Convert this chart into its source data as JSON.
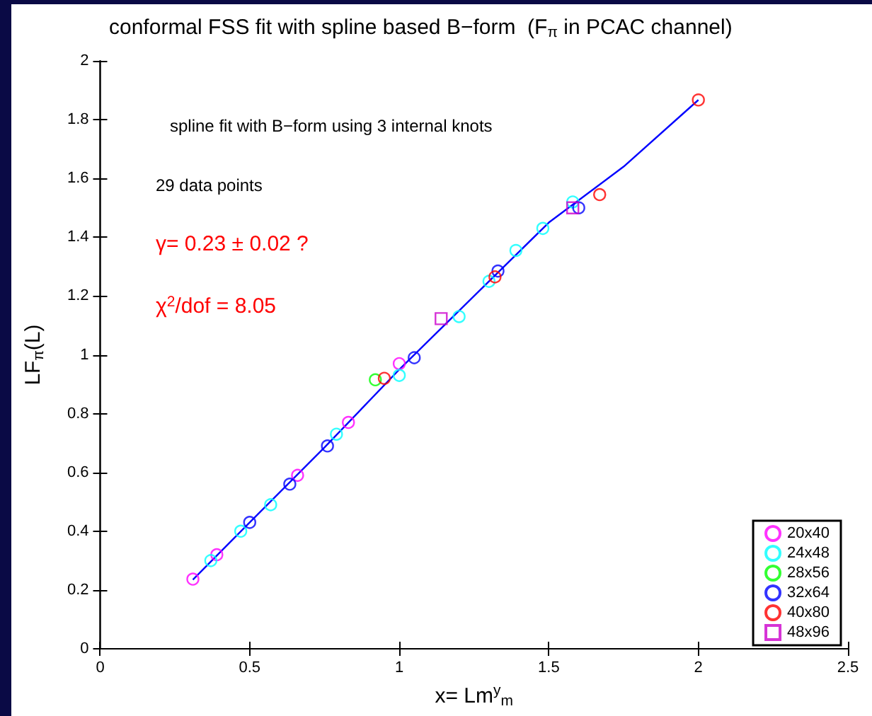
{
  "chart_data": {
    "type": "scatter",
    "title": "conformal FSS fit with spline based B−form  (F$_{π}$ in PCAC channel)",
    "xlabel": "x= Lm$^{y}$$_{m}$",
    "ylabel": "LF$_{π}$(L)",
    "annotations": [
      "spline fit with B−form using 3 internal knots",
      "29 data points",
      "γ= 0.23 ± 0.02 ?",
      "χ$^{2}$/dof = 8.05"
    ],
    "series": [
      {
        "name": "20x40",
        "color": "#ff00ff",
        "marker": "circle",
        "x": [
          0.31,
          0.39,
          0.66,
          0.83,
          1.0
        ],
        "values": [
          0.237,
          0.32,
          0.59,
          0.77,
          0.97
        ]
      },
      {
        "name": "24x48",
        "color": "#00ffff",
        "marker": "circle",
        "x": [
          0.37,
          0.47,
          0.57,
          0.79,
          1.0,
          1.2,
          1.3,
          1.39,
          1.48,
          1.58
        ],
        "values": [
          0.3,
          0.4,
          0.49,
          0.73,
          0.93,
          1.13,
          1.25,
          1.355,
          1.43,
          1.52
        ]
      },
      {
        "name": "28x56",
        "color": "#00ff00",
        "marker": "circle",
        "x": [
          0.92
        ],
        "values": [
          0.915
        ]
      },
      {
        "name": "32x64",
        "color": "#0000ff",
        "marker": "circle",
        "x": [
          0.5,
          0.634,
          0.76,
          1.05,
          1.33,
          1.6
        ],
        "values": [
          0.43,
          0.56,
          0.69,
          0.99,
          1.285,
          1.5
        ]
      },
      {
        "name": "40x80",
        "color": "#ff0000",
        "marker": "circle",
        "x": [
          0.95,
          1.32,
          1.67,
          2.0
        ],
        "values": [
          0.92,
          1.265,
          1.545,
          1.867
        ]
      },
      {
        "name": "48x96",
        "color": "#cc00cc",
        "marker": "square",
        "x": [
          1.14,
          1.58
        ],
        "values": [
          1.123,
          1.5
        ]
      },
      {
        "type": "line",
        "color": "#0000ff",
        "marker": "none",
        "x": [
          0.31,
          0.5,
          0.75,
          1.0,
          1.25,
          1.5,
          1.75,
          2.0
        ],
        "values": [
          0.235,
          0.43,
          0.685,
          0.95,
          1.2,
          1.45,
          1.64,
          1.867
        ]
      }
    ],
    "xlim": [
      0,
      2.5
    ],
    "xticks": [
      0,
      0.5,
      1,
      1.5,
      2,
      2.5
    ],
    "ylim": [
      0,
      2
    ],
    "yticks": [
      0,
      0.2,
      0.4,
      0.6,
      0.8,
      1,
      1.2,
      1.4,
      1.6,
      1.8,
      2
    ],
    "grid": false,
    "legend": "bottom right"
  }
}
